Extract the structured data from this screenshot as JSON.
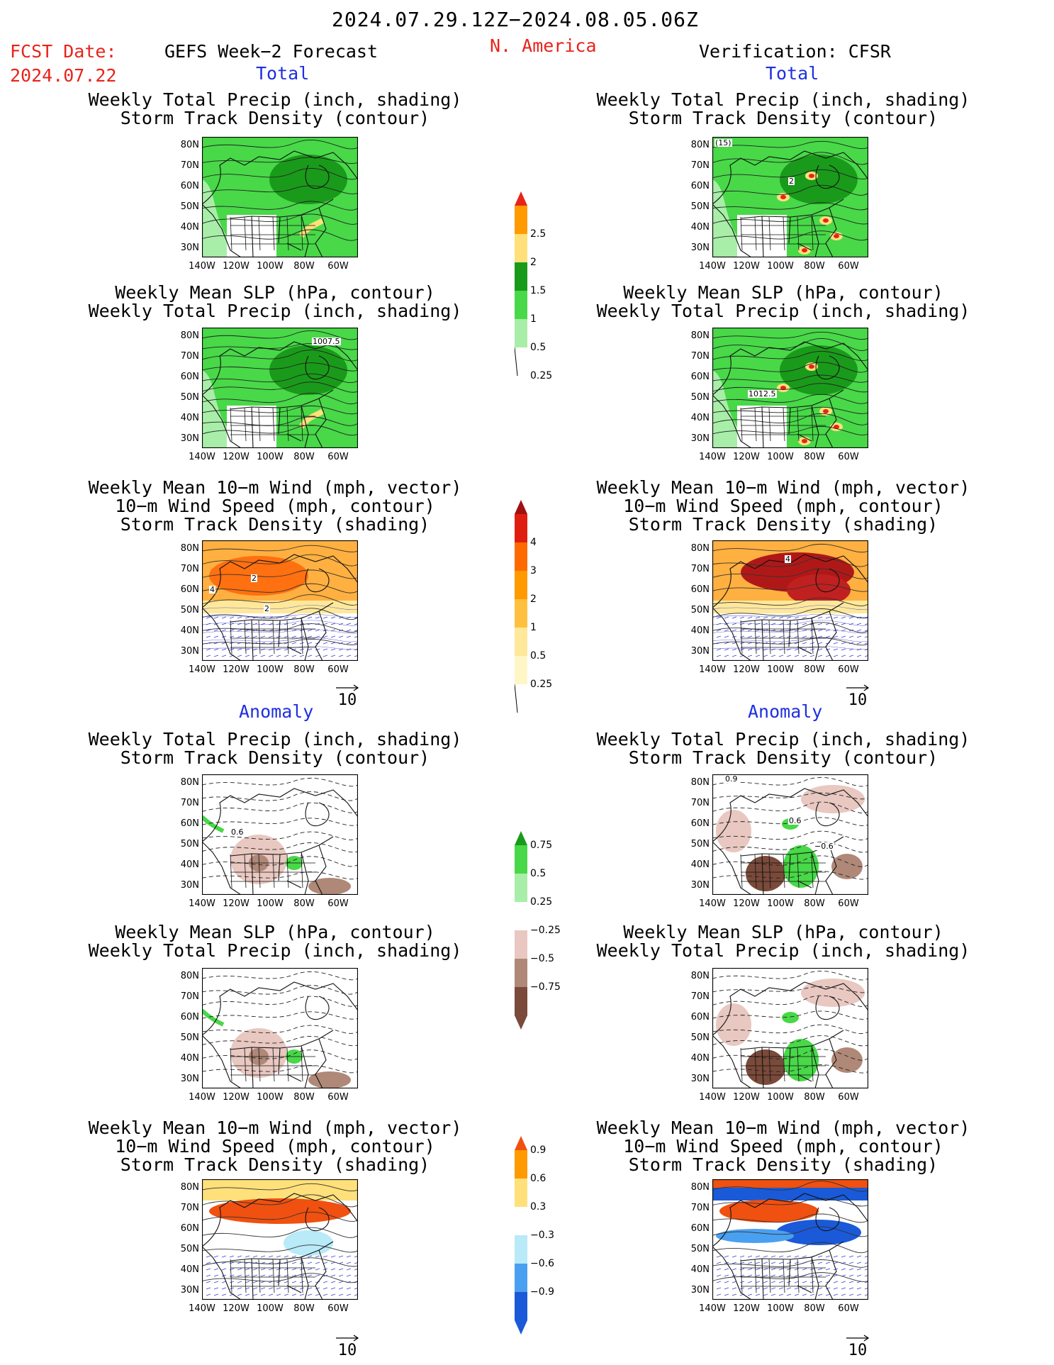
{
  "header": {
    "period": "2024.07.29.12Z−2024.08.05.06Z",
    "fcst_label": "FCST Date:",
    "fcst_date": "2024.07.22",
    "forecast_title": "GEFS Week−2 Forecast",
    "region": "N. America",
    "verification": "Verification: CFSR"
  },
  "section_labels": {
    "total": "Total",
    "anomaly": "Anomaly"
  },
  "titles": {
    "precip_track": [
      "Weekly Total Precip (inch, shading)",
      "Storm Track Density (contour)"
    ],
    "slp_precip": [
      "Weekly Mean SLP (hPa, contour)",
      "Weekly Total Precip (inch, shading)"
    ],
    "wind_track": [
      "Weekly Mean 10−m Wind (mph, vector)",
      "10−m Wind Speed (mph, contour)",
      "Storm Track Density (shading)"
    ]
  },
  "axes": {
    "lat_labels": [
      "80N",
      "70N",
      "60N",
      "50N",
      "40N",
      "30N"
    ],
    "lon_labels": [
      "140W",
      "120W",
      "100W",
      "80W",
      "60W"
    ]
  },
  "vector_reference": "10",
  "colorbars": {
    "precip_total": {
      "labels": [
        "2.5",
        "2",
        "1.5",
        "1",
        "0.5",
        "0.25"
      ],
      "colors": [
        "#e8231a",
        "#ff9a00",
        "#ffe07a",
        "#1a9a1a",
        "#48d848",
        "#a8eea8"
      ]
    },
    "track_total": {
      "labels": [
        "4",
        "3",
        "2",
        "1",
        "0.5",
        "0.25"
      ],
      "colors": [
        "#a01010",
        "#e01e10",
        "#ff6a00",
        "#ff9a00",
        "#ffc040",
        "#ffe89a",
        "#fff6c8"
      ]
    },
    "precip_anom": {
      "labels": [
        "0.75",
        "0.5",
        "0.25",
        "−0.25",
        "−0.5",
        "−0.75"
      ],
      "colors": [
        "#1a9a1a",
        "#48d848",
        "#a8eea8",
        "#ffffff",
        "#e8c8c0",
        "#b08878",
        "#7a4a3a"
      ]
    },
    "track_anom": {
      "labels": [
        "0.9",
        "0.6",
        "0.3",
        "−0.3",
        "−0.6",
        "−0.9"
      ],
      "colors": [
        "#f05010",
        "#ff9a00",
        "#ffe07a",
        "#ffffff",
        "#b8eaf8",
        "#4aa0f0",
        "#1a5ad8"
      ]
    }
  },
  "panel_contour_labels": {
    "fcst_slp_total": "1007.5",
    "veri_slp_total": "1012.5",
    "veri_track_total": "2",
    "veri_track_top": "(15)",
    "fcst_wind_total_a": "2",
    "fcst_wind_total_b": "2",
    "fcst_wind_total_c": "4",
    "veri_wind_total": "4",
    "fcst_precip_anom": "0.6",
    "veri_precip_anom_a": "0.9",
    "veri_precip_anom_b": "0.6",
    "veri_precip_anom_c": "−0.6"
  }
}
